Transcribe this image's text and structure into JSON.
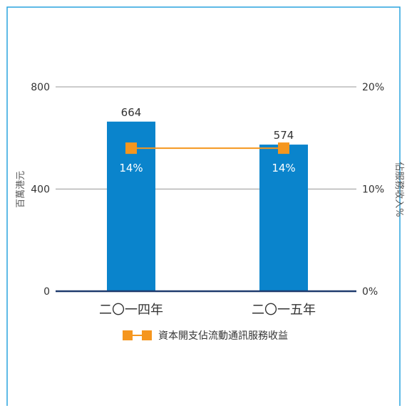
{
  "colors": {
    "frame": "#29A3DD",
    "bar": "#0A84CC",
    "line": "#F5961E",
    "grid": "#999999",
    "baseline": "#1F3B6E",
    "bar_label": "#FFFFFF",
    "value_label": "#333333"
  },
  "chart_data": {
    "type": "bar",
    "title": "",
    "categories": [
      "二〇一四年",
      "二〇一五年"
    ],
    "left_axis": {
      "label": "百萬港元",
      "ylim": [
        0,
        800
      ],
      "ticks": [
        0,
        400,
        800
      ],
      "tick_labels": [
        "0",
        "400",
        "800"
      ]
    },
    "right_axis": {
      "label": "佔服務收入%",
      "ylim": [
        0,
        20
      ],
      "ticks": [
        0,
        10,
        20
      ],
      "tick_labels": [
        "0%",
        "10%",
        "20%"
      ]
    },
    "series": [
      {
        "type": "bar",
        "axis": "left",
        "values": [
          664,
          574
        ],
        "value_labels": [
          "664",
          "574"
        ]
      },
      {
        "type": "line",
        "axis": "right",
        "name": "資本開支佔流動通訊服務收益",
        "values": [
          14,
          14
        ],
        "value_labels": [
          "14%",
          "14%"
        ]
      }
    ],
    "grid": true,
    "legend": {
      "position": "bottom-center",
      "entries": [
        "資本開支佔流動通訊服務收益"
      ]
    }
  }
}
